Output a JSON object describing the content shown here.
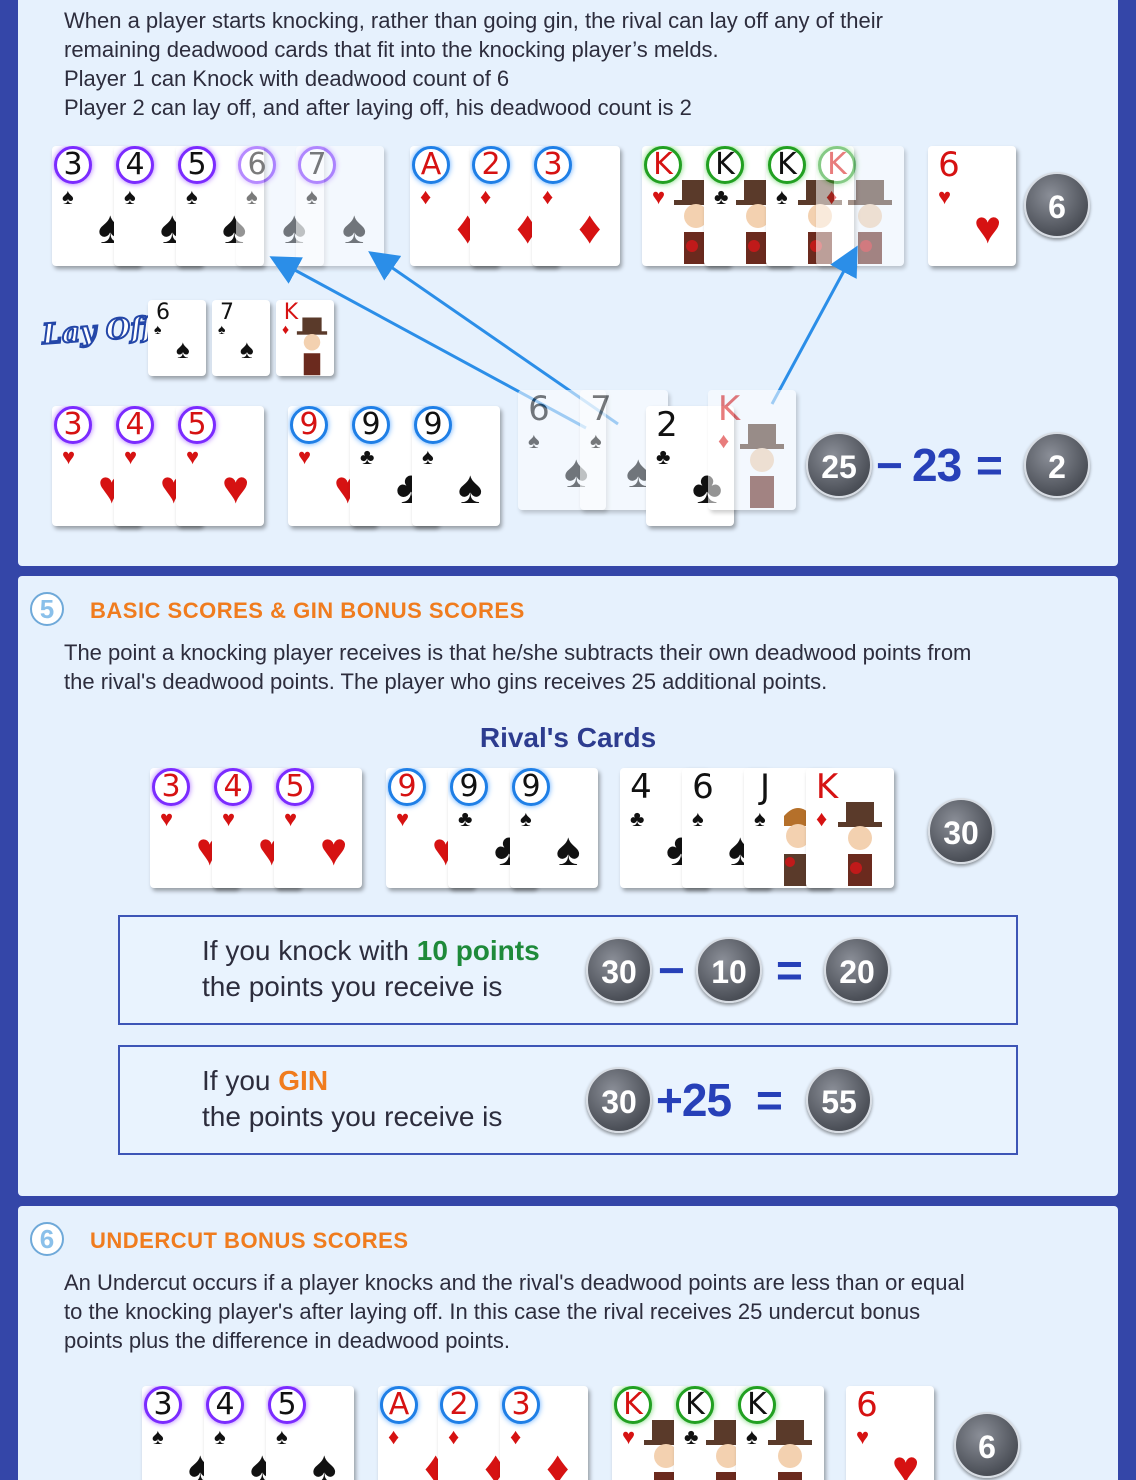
{
  "panel_a": {
    "lines": [
      "When a player starts knocking, rather than going gin, the rival can lay off any of their",
      "remaining deadwood cards that fit into the knocking player’s melds.",
      "Player 1 can Knock with deadwood count of 6",
      "Player 2 can lay off,   and after laying off, his deadwood count is 2"
    ],
    "player1_deadwood": "6",
    "lay_off_label": "Lay Off",
    "equation": {
      "left": "25",
      "minus": "−",
      "middle": "23",
      "equals": "=",
      "result": "2"
    }
  },
  "section5": {
    "number": "5",
    "title": "BASIC SCORES & GIN BONUS SCORES",
    "lines": [
      "The point a knocking player receives is that he/she subtracts their own deadwood points from",
      "the rival's deadwood points. The player who gins receives 25 additional points."
    ],
    "rivals_title": "Rival's Cards",
    "rival_total": "30",
    "knock_box": {
      "line1_prefix": "If you knock with",
      "line1_highlight": "10 points",
      "line2": "the points you receive is",
      "a": "30",
      "op": "−",
      "b": "10",
      "eq": "=",
      "result": "20"
    },
    "gin_box": {
      "line1_prefix": "If you",
      "line1_highlight": "GIN",
      "line2": "the points you receive is",
      "a": "30",
      "op": "+25",
      "eq": "=",
      "result": "55"
    }
  },
  "section6": {
    "number": "6",
    "title": "UNDERCUT BONUS SCORES",
    "lines": [
      "An Undercut occurs if a player knocks and the rival's deadwood points are less than or equal",
      "to the knocking player's after laying off. In this case the rival receives 25 undercut bonus",
      "points plus the difference in deadwood points."
    ],
    "deadwood": "6"
  },
  "colors": {
    "background": "#3446a8",
    "panel": "#e6f1fd",
    "accent_orange": "#f07c1e",
    "accent_blue": "#2740b8",
    "green": "#1e8a3a"
  }
}
